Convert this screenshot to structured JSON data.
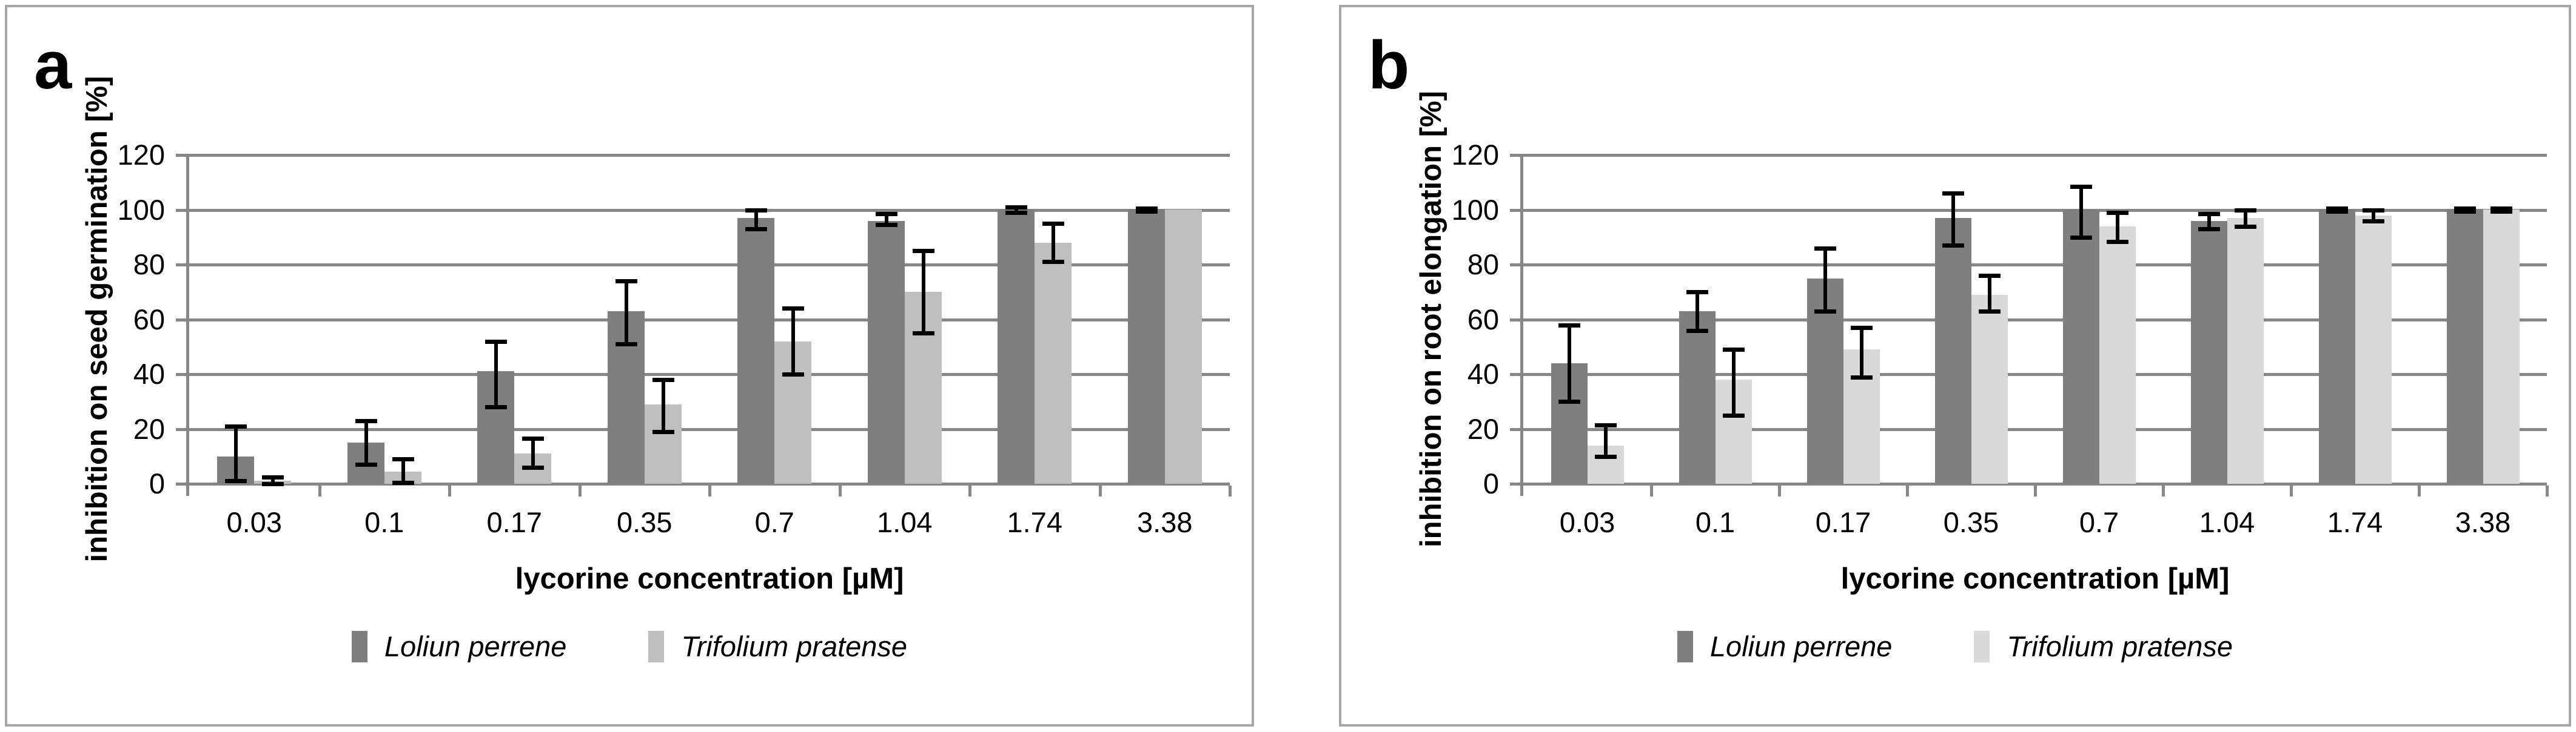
{
  "colors": {
    "series_dark": "#7f7f7f",
    "series_light_a": "#bfbfbf",
    "series_light_b": "#d9d9d9",
    "gridline": "#878787",
    "panel_border": "#a6a6a6",
    "error_bar": "#000000"
  },
  "chart_data": [
    {
      "type": "bar",
      "panel_label": "a",
      "title": "",
      "xlabel": "lycorine concentration [µM]",
      "ylabel": "inhibition on seed germination [%]",
      "ylim": [
        0,
        120
      ],
      "y_ticks": [
        0,
        20,
        40,
        60,
        80,
        100,
        120
      ],
      "grid": "horizontal",
      "legend_position": "bottom",
      "categories": [
        "0.03",
        "0.1",
        "0.17",
        "0.35",
        "0.7",
        "1.04",
        "1.74",
        "3.38"
      ],
      "series": [
        {
          "name": "Loliun perrene",
          "color": "#7f7f7f",
          "values": [
            10,
            15,
            41,
            63,
            97,
            96,
            100,
            100
          ],
          "err_low": [
            1,
            7,
            28,
            51,
            93,
            94.5,
            99,
            99.5
          ],
          "err_high": [
            21,
            23,
            52,
            74,
            100,
            98.5,
            101,
            100.5
          ]
        },
        {
          "name": "Trifolium pratense",
          "color": "#bfbfbf",
          "values": [
            1,
            4.5,
            11,
            29,
            52,
            70,
            88,
            100
          ],
          "err_low": [
            0,
            0.5,
            6,
            19,
            40,
            55,
            81,
            100
          ],
          "err_high": [
            2.5,
            9,
            16.5,
            38,
            64,
            85,
            95,
            100
          ]
        }
      ]
    },
    {
      "type": "bar",
      "panel_label": "b",
      "title": "",
      "xlabel": "lycorine concentration [µM]",
      "ylabel": "inhibition on root elongation [%]",
      "ylim": [
        0,
        120
      ],
      "y_ticks": [
        0,
        20,
        40,
        60,
        80,
        100,
        120
      ],
      "grid": "horizontal",
      "legend_position": "bottom",
      "categories": [
        "0.03",
        "0.1",
        "0.17",
        "0.35",
        "0.7",
        "1.04",
        "1.74",
        "3.38"
      ],
      "series": [
        {
          "name": "Loliun perrene",
          "color": "#7f7f7f",
          "values": [
            44,
            63,
            75,
            97,
            100,
            96,
            100,
            100
          ],
          "err_low": [
            30,
            56,
            63,
            87,
            90,
            93,
            99.5,
            99.5
          ],
          "err_high": [
            58,
            70,
            86,
            106,
            108.5,
            98.5,
            100.5,
            100.5
          ]
        },
        {
          "name": "Trifolium pratense",
          "color": "#d9d9d9",
          "values": [
            14,
            38,
            49,
            69,
            94,
            97,
            98,
            100
          ],
          "err_low": [
            10,
            25,
            39,
            63,
            88.5,
            94,
            96,
            99.5
          ],
          "err_high": [
            21.5,
            49,
            57,
            76,
            99,
            100,
            100,
            100.5
          ]
        }
      ]
    }
  ]
}
